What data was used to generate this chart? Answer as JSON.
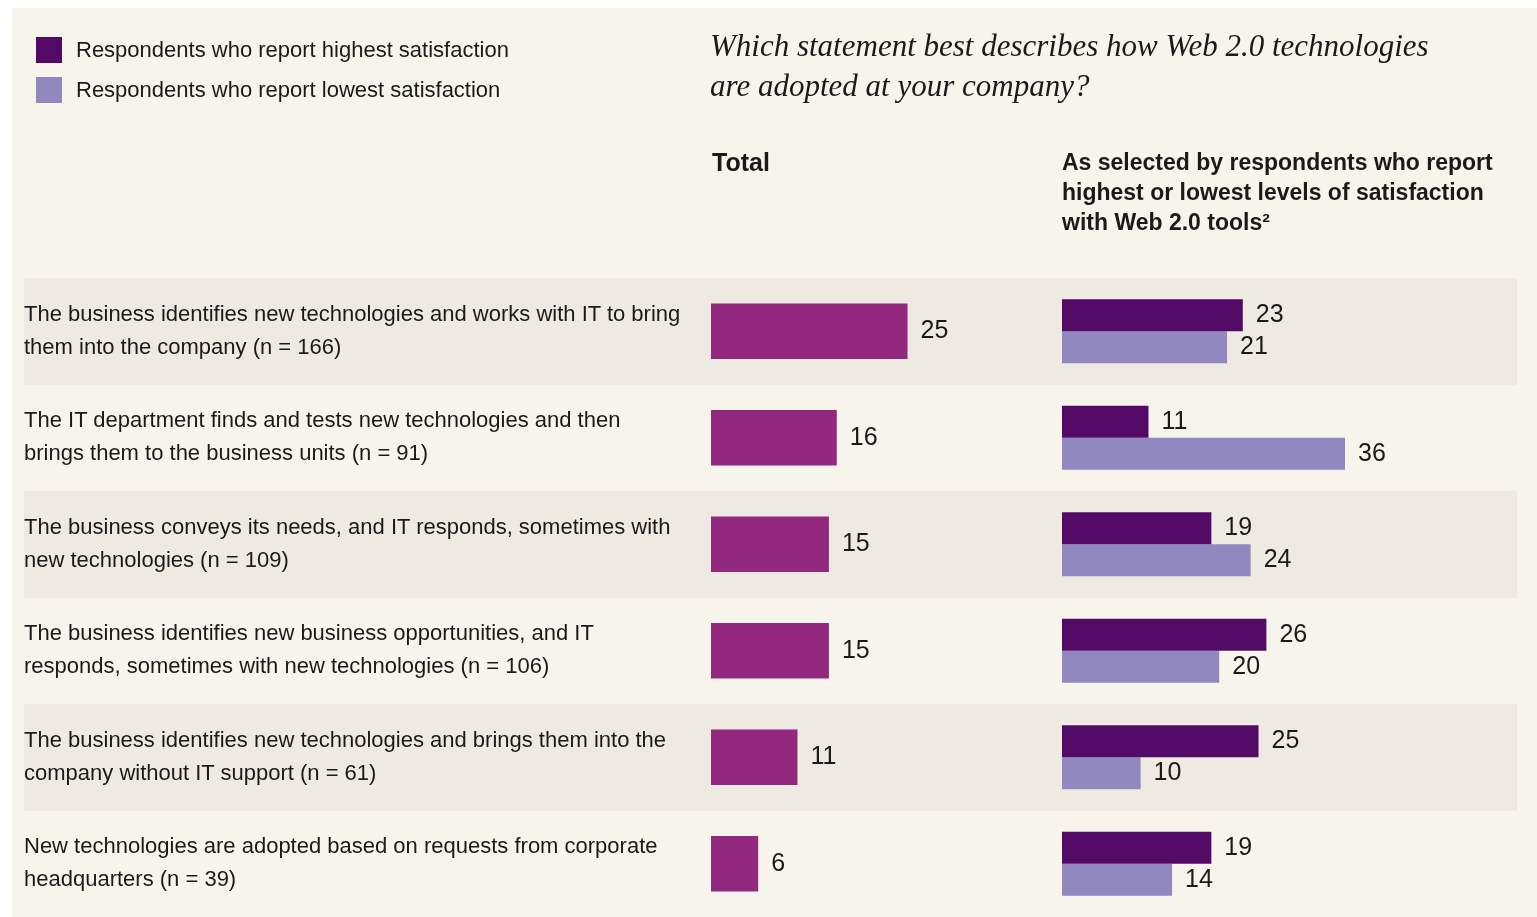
{
  "chart_data": [
    {
      "type": "bar",
      "orientation": "horizontal",
      "title": "Which statement best describes how Web 2.0 technologies are adopted at your company?",
      "subtitle": "Total",
      "categories": [
        "The business identifies new technologies and works with IT to bring them into the company (n = 166)",
        "The IT department finds and tests new technologies and then brings them to the business units (n = 91)",
        "The business conveys its needs, and IT responds, sometimes with new technologies (n = 109)",
        "The business identifies new business opportunities, and IT responds, sometimes with new technologies (n = 106)",
        "The business identifies new technologies and brings them into the company without IT support (n = 61)",
        "New technologies are adopted based on requests from corporate headquarters (n = 39)"
      ],
      "values": [
        25,
        16,
        15,
        15,
        11,
        6
      ],
      "color": "#93287f",
      "data_labels": true,
      "tick_labels": "y"
    },
    {
      "type": "bar",
      "orientation": "horizontal",
      "title": "As selected by respondents who report highest or lowest levels of satisfaction with Web 2.0 tools²",
      "categories": [
        null,
        null,
        null,
        null,
        null,
        null
      ],
      "series": [
        {
          "name": "Respondents who report highest satisfaction",
          "color": "#520a66",
          "values": [
            23,
            11,
            19,
            26,
            25,
            19
          ]
        },
        {
          "name": "Respondents who report lowest satisfaction",
          "color": "#9188c0",
          "values": [
            21,
            36,
            24,
            20,
            10,
            14
          ]
        }
      ],
      "data_labels": true,
      "tick_labels": false,
      "legend": "top left"
    }
  ]
}
